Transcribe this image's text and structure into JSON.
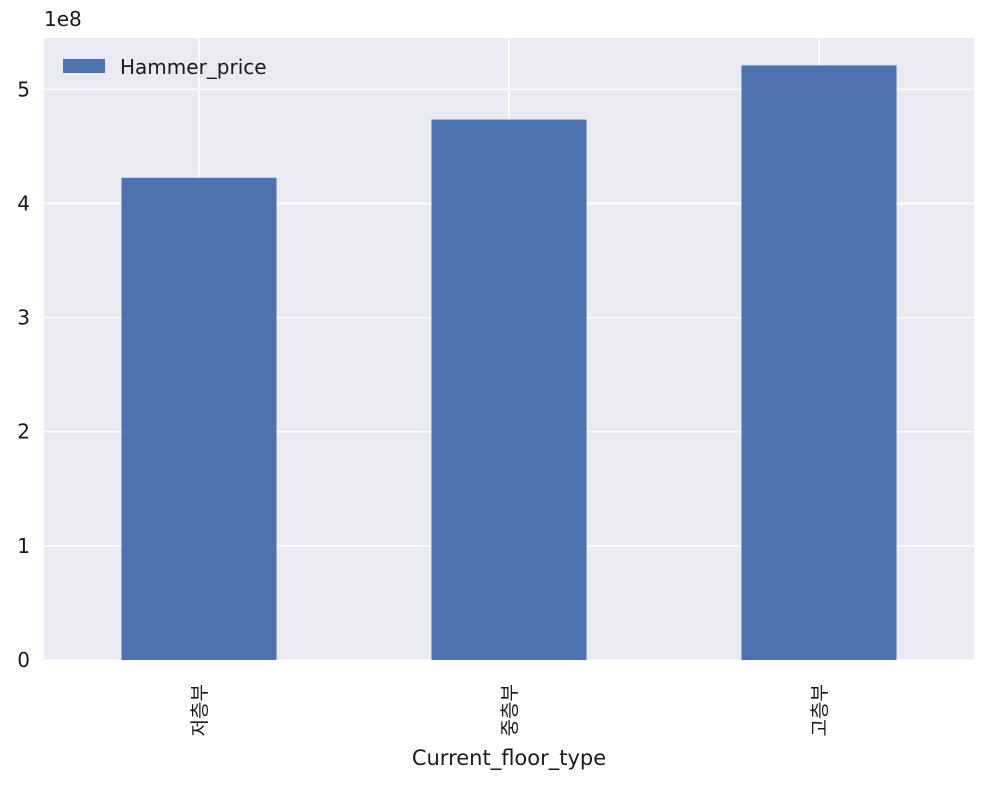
{
  "chart_data": {
    "type": "bar",
    "title": "",
    "xlabel": "Current_floor_type",
    "ylabel": "",
    "categories": [
      "저층부",
      "중층부",
      "고층부"
    ],
    "series": [
      {
        "name": "Hammer_price",
        "values": [
          422500000,
          473500000,
          521000000
        ],
        "color": "#4c72b0"
      }
    ],
    "ylim": [
      0,
      545000000
    ],
    "yticks": [
      0,
      100000000,
      200000000,
      300000000,
      400000000,
      500000000
    ],
    "ytick_labels": [
      "0",
      "1",
      "2",
      "3",
      "4",
      "5"
    ],
    "offset_label": "1e8",
    "grid": true,
    "legend_position": "top-left",
    "background_color": "#eaeaf2",
    "grid_color": "#ffffff",
    "x_tick_rotation": "vertical"
  }
}
